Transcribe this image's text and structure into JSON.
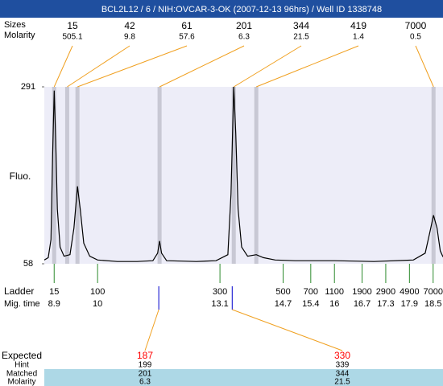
{
  "chart_data": {
    "type": "electropherogram",
    "title": "BCL2L12 / 6 / NIH:OVCAR-3-OK (2007-12-13 96hrs) / Well ID 1338748",
    "sizes_label": "Sizes",
    "molarity_label": "Molarity",
    "y_label": "Fluo.",
    "ladder_label": "Ladder",
    "mig_time_label": "Mig. time",
    "expected_label": "Expected",
    "hint_label": "Hint",
    "matched_label": "Matched",
    "bottom_molarity_label": "Molarity",
    "xlim": [
      8.65,
      18.75
    ],
    "ylim": [
      58,
      291
    ],
    "yticks": [
      58,
      291
    ],
    "colors": {
      "title_bar": "#1f4f9f",
      "plot_bg": "#ededf8",
      "band": "#c8c8d4",
      "trace": "#000000",
      "ladder": "#2e8b2e",
      "link": "#f0a020",
      "marker": "#0000cc",
      "expected": "#ff0000",
      "row_bg": "#add8e6"
    },
    "peaks": {
      "sizes": [
        15,
        42,
        61,
        201,
        344,
        419,
        7000
      ],
      "molarity": [
        505.1,
        9.8,
        57.6,
        6.3,
        21.5,
        1.4,
        0.5
      ],
      "times": [
        8.9,
        9.23,
        9.49,
        11.57,
        13.45,
        14.02,
        18.51
      ]
    },
    "ladder": {
      "sizes": [
        15,
        100,
        300,
        500,
        700,
        1100,
        1900,
        2900,
        4900,
        7000
      ],
      "times": [
        8.9,
        10,
        13.1,
        14.7,
        15.4,
        16,
        16.7,
        17.3,
        17.9,
        18.5
      ]
    },
    "expected": {
      "sizes": [
        187,
        330
      ],
      "hint": [
        199,
        339
      ],
      "matched": [
        201,
        344
      ],
      "molarity": [
        6.3,
        21.5
      ],
      "times": [
        11.55,
        13.41
      ]
    },
    "trace": {
      "x": [
        8.65,
        8.75,
        8.82,
        8.86,
        8.9,
        8.94,
        8.98,
        9.05,
        9.15,
        9.3,
        9.4,
        9.49,
        9.56,
        9.65,
        9.8,
        10,
        10.5,
        11,
        11.4,
        11.52,
        11.57,
        11.62,
        11.75,
        12.5,
        13,
        13.3,
        13.38,
        13.45,
        13.5,
        13.56,
        13.65,
        13.8,
        14.02,
        14.2,
        14.5,
        15,
        16,
        17,
        18,
        18.3,
        18.42,
        18.51,
        18.6,
        18.68,
        18.75
      ],
      "values": [
        63,
        66,
        90,
        200,
        286,
        220,
        130,
        80,
        68,
        70,
        105,
        160,
        130,
        85,
        68,
        63,
        61,
        61,
        62,
        72,
        88,
        72,
        62,
        61,
        62,
        70,
        150,
        291,
        230,
        130,
        80,
        68,
        70,
        66,
        63,
        62,
        62,
        61,
        63,
        72,
        100,
        122,
        105,
        75,
        67
      ]
    }
  }
}
